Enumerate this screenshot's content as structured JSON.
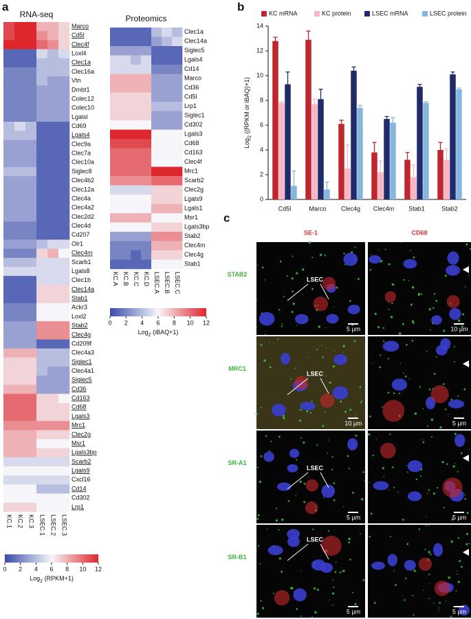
{
  "panel_labels": [
    "a",
    "b",
    "c"
  ],
  "heatmaps": [
    {
      "title": "RNA-seq",
      "columns": [
        "KC.1",
        "KC.2",
        "KC.3",
        "LSEC.1",
        "LSEC.2",
        "LSEC.3"
      ],
      "rows": [
        "Marco",
        "Cd5l",
        "Clec4f",
        "Loxl4",
        "Clec1a",
        "Clec16a",
        "Vtn",
        "Dmbt1",
        "Colec12",
        "Colec10",
        "Lgalsl",
        "Cd69",
        "Lgals4",
        "Clec9a",
        "Clec7a",
        "Clec10a",
        "Siglec8",
        "Clec4b2",
        "Clec12a",
        "Clec4a",
        "Clec4a2",
        "Clec2d2",
        "Clec4d",
        "Cd207",
        "Olr1",
        "Clec4m",
        "Scarb1",
        "Lgals8",
        "Clec1b",
        "Clec14a",
        "Stab1",
        "Ackr3",
        "Loxl2",
        "Stab2",
        "Clec4g",
        "Cd209f",
        "Clec4a3",
        "Siglec1",
        "Clec4a1",
        "Siglec5",
        "Cd36",
        "Cd163",
        "Cd68",
        "Lgals3",
        "Mrc1",
        "Clec2g",
        "Msr1",
        "Lgals3bp",
        "Scarb2",
        "Lgals9",
        "Cxcl16",
        "Cd14",
        "Cd302",
        "Lrp1"
      ],
      "underlined": [
        true,
        true,
        true,
        false,
        true,
        false,
        false,
        false,
        false,
        false,
        false,
        false,
        true,
        false,
        false,
        false,
        false,
        false,
        false,
        false,
        false,
        false,
        false,
        false,
        false,
        true,
        false,
        false,
        false,
        true,
        true,
        false,
        false,
        true,
        true,
        false,
        false,
        true,
        false,
        true,
        true,
        true,
        true,
        true,
        true,
        true,
        true,
        true,
        true,
        true,
        false,
        true,
        false,
        true
      ],
      "values": [
        [
          11,
          12,
          12,
          8,
          8,
          7
        ],
        [
          11,
          12,
          12,
          9,
          8,
          7
        ],
        [
          12,
          12,
          12,
          10,
          9,
          7
        ],
        [
          1,
          1,
          1,
          5,
          4,
          5
        ],
        [
          1,
          1,
          1,
          4,
          4,
          4
        ],
        [
          2,
          2,
          2,
          4,
          4,
          4
        ],
        [
          2,
          2,
          2,
          4,
          3,
          3
        ],
        [
          2,
          2,
          2,
          3,
          3,
          3
        ],
        [
          2,
          2,
          2,
          3,
          3,
          3
        ],
        [
          2,
          2,
          2,
          3,
          3,
          3
        ],
        [
          2,
          2,
          2,
          3,
          3,
          3
        ],
        [
          4,
          5,
          4,
          1,
          1,
          1
        ],
        [
          4,
          4,
          4,
          1,
          1,
          1
        ],
        [
          3,
          3,
          3,
          1,
          1,
          1
        ],
        [
          3,
          3,
          3,
          1,
          1,
          1
        ],
        [
          3,
          3,
          3,
          1,
          1,
          1
        ],
        [
          4,
          4,
          4,
          1,
          1,
          1
        ],
        [
          3,
          3,
          3,
          1,
          1,
          1
        ],
        [
          3,
          3,
          3,
          1,
          1,
          1
        ],
        [
          3,
          3,
          3,
          1,
          1,
          1
        ],
        [
          3,
          3,
          3,
          1,
          1,
          1
        ],
        [
          3,
          3,
          3,
          1,
          1,
          1
        ],
        [
          2,
          2,
          2,
          1,
          1,
          1
        ],
        [
          2,
          2,
          2,
          1,
          1,
          1
        ],
        [
          3,
          3,
          3,
          4,
          5,
          5
        ],
        [
          2,
          2,
          2,
          7,
          8,
          6
        ],
        [
          4,
          4,
          4,
          5,
          5,
          5
        ],
        [
          5,
          5,
          5,
          5,
          5,
          5
        ],
        [
          1,
          1,
          1,
          5,
          5,
          5
        ],
        [
          1,
          1,
          1,
          7,
          7,
          7
        ],
        [
          1,
          1,
          1,
          7,
          7,
          7
        ],
        [
          2,
          2,
          2,
          6,
          6,
          6
        ],
        [
          2,
          2,
          2,
          6,
          6,
          6
        ],
        [
          3,
          3,
          3,
          9,
          9,
          9
        ],
        [
          3,
          3,
          3,
          9,
          9,
          9
        ],
        [
          3,
          3,
          3,
          1,
          1,
          1
        ],
        [
          8,
          8,
          8,
          4,
          4,
          4
        ],
        [
          7,
          7,
          7,
          4,
          4,
          4
        ],
        [
          7,
          7,
          7,
          4,
          3,
          3
        ],
        [
          7,
          7,
          7,
          3,
          3,
          3
        ],
        [
          8,
          8,
          8,
          3,
          3,
          3
        ],
        [
          10,
          10,
          10,
          7,
          7,
          6
        ],
        [
          10,
          10,
          10,
          7,
          7,
          7
        ],
        [
          10,
          10,
          10,
          7,
          7,
          7
        ],
        [
          9,
          9,
          9,
          9,
          9,
          9
        ],
        [
          8,
          8,
          8,
          7,
          7,
          7
        ],
        [
          8,
          8,
          8,
          6,
          6,
          6
        ],
        [
          8,
          8,
          8,
          7,
          7,
          7
        ],
        [
          5,
          5,
          5,
          5,
          5,
          5
        ],
        [
          6,
          6,
          6,
          6,
          6,
          6
        ],
        [
          5,
          5,
          5,
          5,
          5,
          5
        ],
        [
          6,
          6,
          6,
          4,
          4,
          4
        ],
        [
          6,
          6,
          6,
          6,
          6,
          6
        ],
        [
          7,
          7,
          7,
          6,
          6,
          6
        ]
      ],
      "colorbar": {
        "range": [
          0,
          12
        ],
        "ticks": [
          0,
          2,
          4,
          6,
          8,
          10,
          12
        ],
        "label": {
          "pre": "Log",
          "sub": "2",
          "post": " (RPKM+1)"
        }
      }
    },
    {
      "title": "Proteomics",
      "columns": [
        "KC.A",
        "KC.B",
        "KC.C",
        "KC.D",
        "LSEC.A",
        "LSEC.B",
        "LSEC.C"
      ],
      "rows": [
        "Clec1a",
        "Clec14a",
        "Siglec5",
        "Lgals4",
        "Cd14",
        "Marco",
        "Cd36",
        "Cd5l",
        "Lrp1",
        "Siglec1",
        "Cd302",
        "Lgals3",
        "Cd68",
        "Cd163",
        "Clec4f",
        "Mrc1",
        "Scarb2",
        "Clec2g",
        "Lgals9",
        "Lgals1",
        "Msr1",
        "Lgals3bp",
        "Stab2",
        "Clec4m",
        "Clec4g",
        "Stab1"
      ],
      "underlined": [
        false,
        false,
        false,
        false,
        false,
        false,
        false,
        false,
        false,
        false,
        false,
        false,
        false,
        false,
        false,
        false,
        false,
        false,
        false,
        false,
        false,
        false,
        false,
        false,
        false,
        false
      ],
      "values": [
        [
          1,
          1,
          1,
          1,
          4,
          5,
          4
        ],
        [
          1,
          1,
          1,
          1,
          3,
          4,
          5
        ],
        [
          3,
          3,
          3,
          3,
          1,
          1,
          1
        ],
        [
          5,
          5,
          4,
          5,
          1,
          1,
          1
        ],
        [
          5,
          5,
          5,
          5,
          2,
          2,
          2
        ],
        [
          8,
          8,
          8,
          8,
          3,
          3,
          3
        ],
        [
          8,
          8,
          8,
          8,
          3,
          3,
          3
        ],
        [
          7,
          7,
          7,
          7,
          3,
          3,
          3
        ],
        [
          7,
          7,
          7,
          7,
          4,
          4,
          4
        ],
        [
          7,
          7,
          7,
          7,
          3,
          3,
          3
        ],
        [
          6,
          6,
          6,
          6,
          3,
          3,
          3
        ],
        [
          12,
          12,
          12,
          12,
          6,
          6,
          6
        ],
        [
          11,
          11,
          11,
          11,
          6,
          6,
          6
        ],
        [
          10,
          10,
          10,
          10,
          6,
          6,
          6
        ],
        [
          10,
          10,
          10,
          10,
          6,
          6,
          6
        ],
        [
          10,
          10,
          10,
          10,
          12,
          12,
          12
        ],
        [
          9,
          9,
          9,
          9,
          10,
          10,
          10
        ],
        [
          5,
          5,
          5,
          5,
          7,
          7,
          7
        ],
        [
          6,
          6,
          6,
          6,
          7,
          7,
          7
        ],
        [
          6,
          6,
          6,
          6,
          8,
          8,
          8
        ],
        [
          8,
          8,
          8,
          8,
          6,
          6,
          6
        ],
        [
          6,
          6,
          6,
          6,
          7,
          7,
          7
        ],
        [
          3,
          3,
          3,
          3,
          9,
          9,
          9
        ],
        [
          2,
          2,
          2,
          2,
          8,
          8,
          8
        ],
        [
          2,
          2,
          1,
          2,
          7,
          7,
          7
        ],
        [
          1,
          1,
          1,
          1,
          6,
          6,
          6
        ]
      ],
      "colorbar": {
        "range": [
          0,
          12
        ],
        "ticks": [
          0,
          2,
          4,
          6,
          8,
          10,
          12
        ],
        "label": {
          "pre": "Log",
          "sub": "2",
          "post": " (iBAQ+1)"
        }
      }
    }
  ],
  "chart_data": {
    "type": "bar",
    "categories": [
      "Cd5l",
      "Marco",
      "Clec4g",
      "Clec4m",
      "Stab1",
      "Stab2"
    ],
    "series": [
      {
        "name": "KC mRNA",
        "color": "#c0262d",
        "values": [
          12.8,
          12.9,
          6.1,
          3.8,
          3.2,
          4.0
        ],
        "errors": [
          0.3,
          0.7,
          0.3,
          0.8,
          0.6,
          0.6
        ]
      },
      {
        "name": "KC protein",
        "color": "#f7b6c4",
        "values": [
          7.8,
          7.7,
          2.5,
          2.2,
          1.8,
          3.2
        ],
        "errors": [
          0.1,
          0.4,
          1.9,
          0.9,
          1.0,
          0.9
        ]
      },
      {
        "name": "LSEC mRNA",
        "color": "#1f2a6b",
        "values": [
          9.3,
          8.1,
          10.4,
          6.5,
          9.1,
          10.1
        ],
        "errors": [
          1.0,
          0.8,
          0.3,
          0.2,
          0.2,
          0.2
        ]
      },
      {
        "name": "LSEC protein",
        "color": "#86b6de",
        "values": [
          1.1,
          0.8,
          7.4,
          6.2,
          7.8,
          8.9
        ],
        "errors": [
          1.2,
          0.6,
          0.2,
          0.4,
          0.1,
          0.1
        ]
      }
    ],
    "ylim": [
      0,
      14
    ],
    "yticks": [
      0,
      2,
      4,
      6,
      8,
      10,
      12,
      14
    ],
    "y_label": {
      "pre": "Log",
      "sub": "2",
      "post": " ((RPKM or iBAQ)+1)"
    },
    "legend": "top"
  },
  "microscopy": {
    "columns": [
      "SE-1",
      "CD68"
    ],
    "rows": [
      {
        "label": "STAB2",
        "scale_bars": [
          "5 µm",
          "10 µm"
        ],
        "annotation": "LSEC"
      },
      {
        "label": "MRC1",
        "scale_bars": [
          "10 µm",
          "5 µm"
        ],
        "annotation": "LSEC"
      },
      {
        "label": "SR-A1",
        "scale_bars": [
          "5 µm",
          "5 µm"
        ],
        "annotation": "LSEC"
      },
      {
        "label": "SR-B1",
        "scale_bars": [
          "5 µm",
          "5 µm"
        ],
        "annotation": "LSEC"
      }
    ]
  }
}
